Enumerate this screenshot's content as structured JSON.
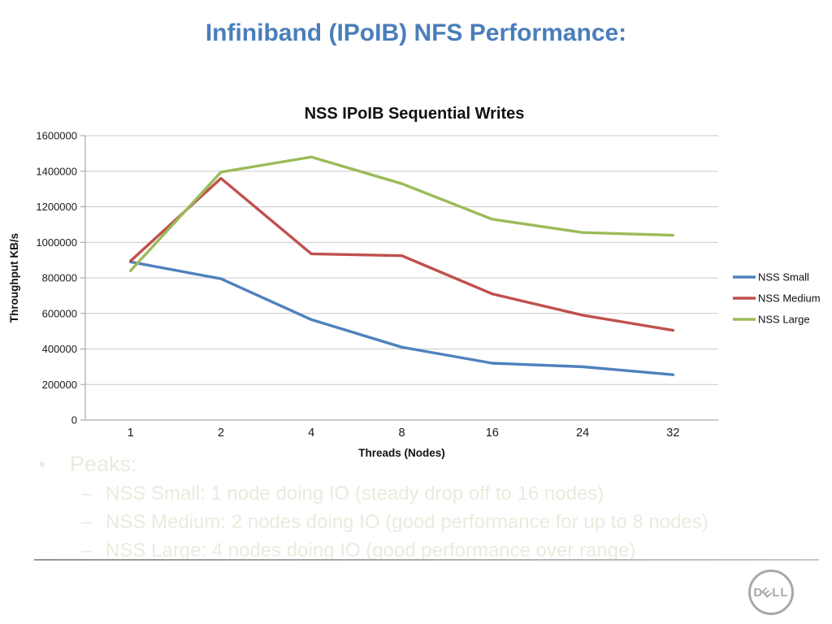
{
  "slide": {
    "title": "Infiniband (IPoIB) NFS Performance:",
    "title_color": "#4a7ebb"
  },
  "chart_data": {
    "type": "line",
    "title": "NSS IPoIB Sequential Writes",
    "xlabel": "Threads (Nodes)",
    "ylabel": "Throughput KB/s",
    "categories": [
      "1",
      "2",
      "4",
      "8",
      "16",
      "24",
      "32"
    ],
    "series": [
      {
        "name": "NSS Small",
        "color": "#4F81BD",
        "values": [
          890000,
          795000,
          565000,
          410000,
          320000,
          300000,
          255000
        ]
      },
      {
        "name": "NSS Medium",
        "color": "#C0504D",
        "values": [
          895000,
          1360000,
          935000,
          925000,
          710000,
          590000,
          505000
        ]
      },
      {
        "name": "NSS Large",
        "color": "#9BBB59",
        "values": [
          840000,
          1395000,
          1480000,
          1330000,
          1130000,
          1055000,
          1040000
        ]
      }
    ],
    "ylim": [
      0,
      1600000
    ],
    "ytick_step": 200000,
    "yticks": [
      "0",
      "200000",
      "400000",
      "600000",
      "800000",
      "1000000",
      "1200000",
      "1400000",
      "1600000"
    ],
    "grid": true,
    "legend_position": "right"
  },
  "notes": {
    "bullet": "•",
    "dash": "–",
    "heading": "Peaks:",
    "items": [
      "NSS Small: 1 node doing IO (steady drop off to 16 nodes)",
      "NSS Medium: 2 nodes doing IO (good performance for up to 8 nodes)",
      "NSS Large: 4 nodes doing IO (good performance over range)"
    ],
    "text_color": "#eceadd"
  },
  "footer": {
    "logo_letters": [
      "D",
      "E",
      "L",
      "L"
    ]
  }
}
